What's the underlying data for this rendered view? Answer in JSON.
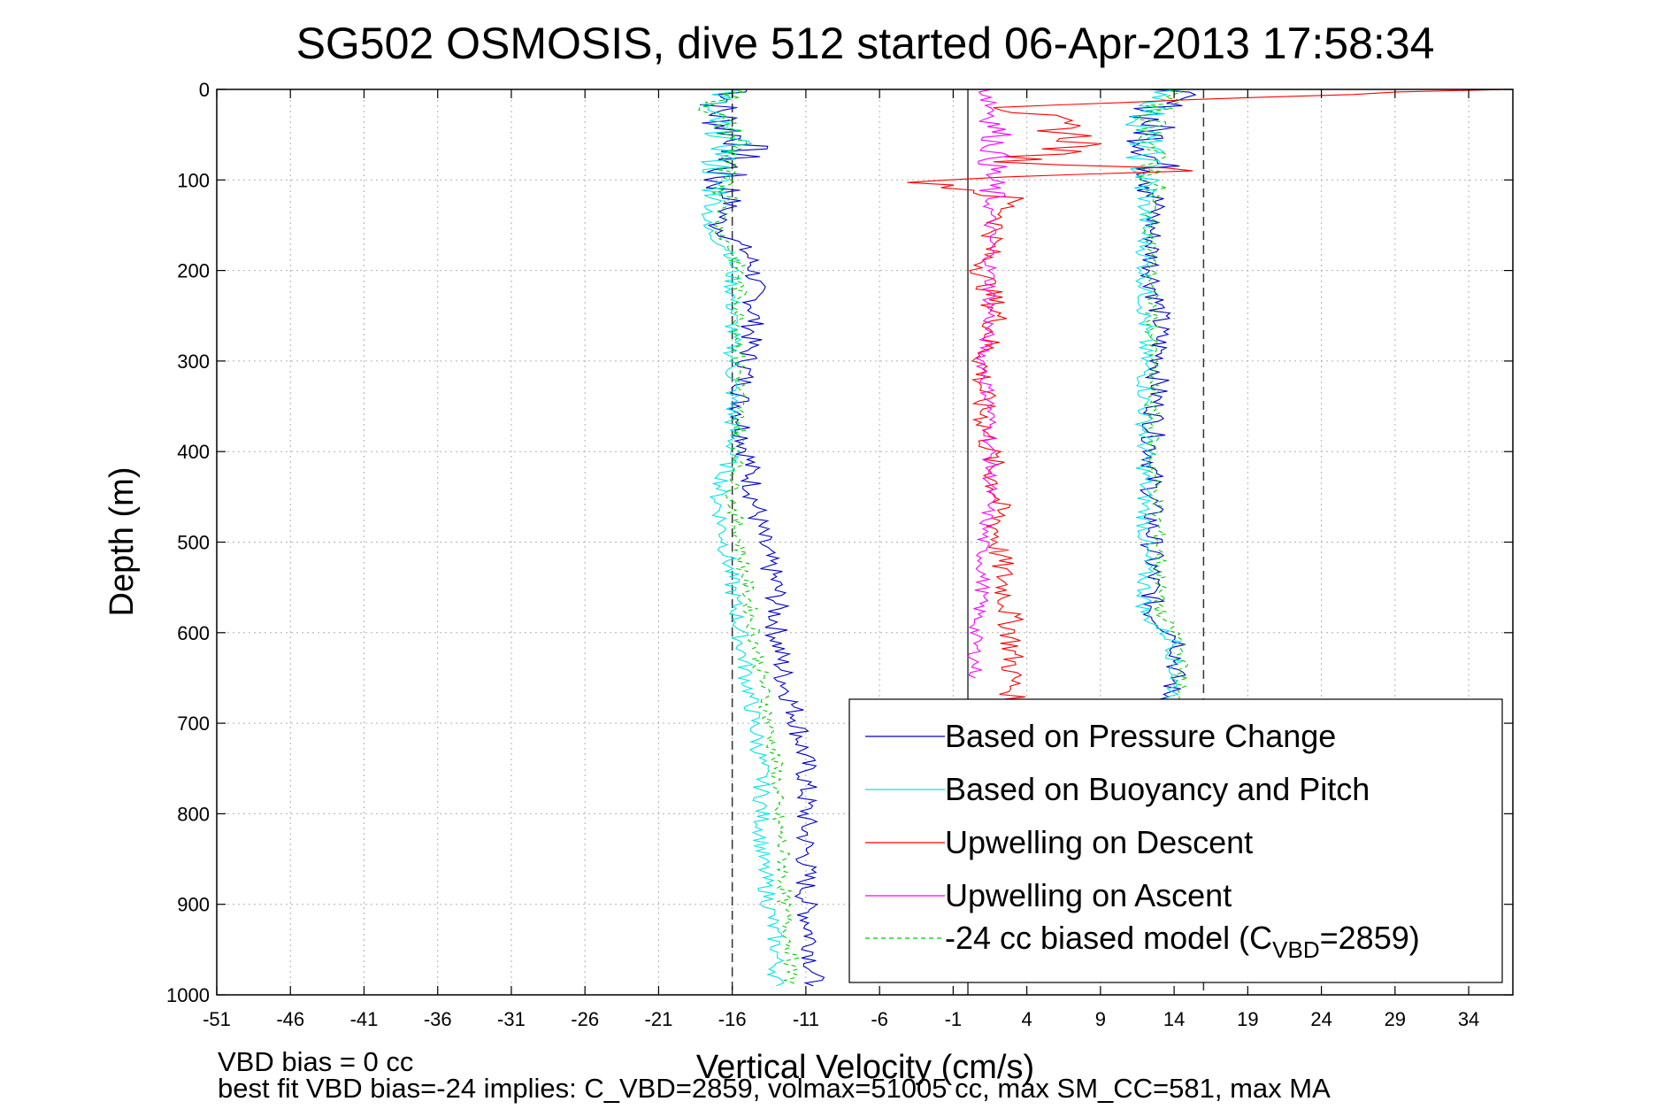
{
  "chart_data": {
    "type": "line",
    "title": "SG502 OSMOSIS, dive 512 started 06-Apr-2013 17:58:34",
    "xlabel": "Vertical Velocity (cm/s)",
    "ylabel": "Depth (m)",
    "xlim": [
      -51,
      37
    ],
    "ylim": [
      0,
      1000
    ],
    "y_reversed": true,
    "grid": true,
    "x_ticks": [
      -51,
      -46,
      -41,
      -36,
      -31,
      -26,
      -21,
      -16,
      -11,
      -6,
      -1,
      4,
      9,
      14,
      19,
      24,
      29,
      34
    ],
    "y_ticks": [
      0,
      100,
      200,
      300,
      400,
      500,
      600,
      700,
      800,
      900,
      1000
    ],
    "legend_position": "bottom-right",
    "reference_lines": [
      {
        "x": -16,
        "style": "dashed"
      },
      {
        "x": 0,
        "style": "solid"
      },
      {
        "x": 16,
        "style": "dashed"
      }
    ],
    "series": [
      {
        "name": "Based on Pressure Change",
        "color": "#0000cc",
        "style": "solid",
        "descent": [
          [
            0,
            -15
          ],
          [
            20,
            -17
          ],
          [
            40,
            -16.5
          ],
          [
            60,
            -15
          ],
          [
            80,
            -16
          ],
          [
            100,
            -17
          ],
          [
            120,
            -16
          ],
          [
            150,
            -17
          ],
          [
            180,
            -15
          ],
          [
            200,
            -14.5
          ],
          [
            250,
            -14.5
          ],
          [
            300,
            -15
          ],
          [
            350,
            -15.5
          ],
          [
            400,
            -15
          ],
          [
            450,
            -14.5
          ],
          [
            500,
            -14
          ],
          [
            550,
            -13
          ],
          [
            600,
            -13
          ],
          [
            650,
            -12.5
          ],
          [
            700,
            -11.5
          ],
          [
            750,
            -11
          ],
          [
            800,
            -11
          ],
          [
            850,
            -11
          ],
          [
            900,
            -11
          ],
          [
            950,
            -10.5
          ],
          [
            990,
            -10.5
          ]
        ],
        "ascent": [
          [
            0,
            14
          ],
          [
            30,
            12.5
          ],
          [
            60,
            12.5
          ],
          [
            100,
            13
          ],
          [
            150,
            12.5
          ],
          [
            200,
            12.5
          ],
          [
            250,
            13
          ],
          [
            300,
            13
          ],
          [
            400,
            12.5
          ],
          [
            500,
            12.5
          ],
          [
            580,
            12.5
          ],
          [
            610,
            14.5
          ],
          [
            650,
            14
          ],
          [
            680,
            13.5
          ]
        ]
      },
      {
        "name": "Based on Buoyancy and Pitch",
        "color": "#00e5e5",
        "style": "solid",
        "descent": [
          [
            0,
            -16
          ],
          [
            20,
            -18
          ],
          [
            40,
            -17
          ],
          [
            60,
            -16
          ],
          [
            80,
            -17
          ],
          [
            100,
            -17
          ],
          [
            120,
            -17
          ],
          [
            150,
            -18
          ],
          [
            180,
            -16
          ],
          [
            200,
            -16
          ],
          [
            250,
            -16
          ],
          [
            300,
            -16
          ],
          [
            350,
            -16
          ],
          [
            400,
            -16
          ],
          [
            450,
            -17
          ],
          [
            500,
            -16.5
          ],
          [
            550,
            -16
          ],
          [
            600,
            -15.5
          ],
          [
            650,
            -15
          ],
          [
            700,
            -14.5
          ],
          [
            750,
            -14
          ],
          [
            800,
            -14
          ],
          [
            850,
            -14
          ],
          [
            900,
            -13.5
          ],
          [
            950,
            -13
          ],
          [
            990,
            -13
          ]
        ],
        "ascent": [
          [
            0,
            14
          ],
          [
            30,
            12
          ],
          [
            60,
            12
          ],
          [
            100,
            12
          ],
          [
            150,
            12
          ],
          [
            200,
            12
          ],
          [
            250,
            12
          ],
          [
            300,
            12
          ],
          [
            400,
            12
          ],
          [
            500,
            12
          ],
          [
            580,
            12
          ],
          [
            610,
            14
          ],
          [
            650,
            14
          ],
          [
            680,
            14
          ]
        ]
      },
      {
        "name": "Upwelling on Descent",
        "color": "#ff0000",
        "style": "solid",
        "descent": [
          [
            0,
            35
          ],
          [
            20,
            3
          ],
          [
            40,
            6
          ],
          [
            60,
            8
          ],
          [
            80,
            3
          ],
          [
            90,
            17
          ],
          [
            100,
            -3
          ],
          [
            120,
            3
          ],
          [
            150,
            2
          ],
          [
            200,
            1
          ],
          [
            250,
            2
          ],
          [
            300,
            1
          ],
          [
            350,
            1
          ],
          [
            400,
            1.5
          ],
          [
            450,
            2
          ],
          [
            500,
            2
          ],
          [
            550,
            2.5
          ],
          [
            600,
            3
          ],
          [
            650,
            3
          ],
          [
            680,
            3
          ]
        ]
      },
      {
        "name": "Upwelling on Ascent",
        "color": "#ff00ff",
        "style": "solid",
        "ascent": [
          [
            0,
            1.5
          ],
          [
            50,
            2
          ],
          [
            100,
            1.5
          ],
          [
            150,
            1.5
          ],
          [
            200,
            1.5
          ],
          [
            250,
            1.5
          ],
          [
            300,
            1
          ],
          [
            350,
            1.5
          ],
          [
            400,
            1.5
          ],
          [
            450,
            1.5
          ],
          [
            500,
            1
          ],
          [
            550,
            1
          ],
          [
            600,
            0.5
          ],
          [
            650,
            0.5
          ]
        ]
      },
      {
        "name": "-24 cc biased model (C",
        "name_sub": "VBD",
        "name_tail": "=2859)",
        "color": "#00cc00",
        "style": "dashed",
        "descent": [
          [
            0,
            -15.5
          ],
          [
            20,
            -17.5
          ],
          [
            40,
            -16.5
          ],
          [
            60,
            -15.5
          ],
          [
            80,
            -16.5
          ],
          [
            100,
            -17
          ],
          [
            120,
            -16
          ],
          [
            150,
            -17
          ],
          [
            180,
            -16
          ],
          [
            200,
            -15.5
          ],
          [
            250,
            -15.5
          ],
          [
            300,
            -15.5
          ],
          [
            350,
            -15.5
          ],
          [
            400,
            -15.5
          ],
          [
            450,
            -16
          ],
          [
            500,
            -15.5
          ],
          [
            550,
            -15
          ],
          [
            600,
            -14.5
          ],
          [
            650,
            -14
          ],
          [
            700,
            -13.5
          ],
          [
            750,
            -13
          ],
          [
            800,
            -13
          ],
          [
            850,
            -12.5
          ],
          [
            900,
            -12.5
          ],
          [
            950,
            -12
          ],
          [
            990,
            -12
          ]
        ],
        "ascent": [
          [
            0,
            14
          ],
          [
            30,
            12.5
          ],
          [
            60,
            12.5
          ],
          [
            100,
            12.5
          ],
          [
            150,
            12.5
          ],
          [
            200,
            12.5
          ],
          [
            250,
            12.5
          ],
          [
            300,
            12.5
          ],
          [
            400,
            12.5
          ],
          [
            500,
            13
          ],
          [
            580,
            13
          ],
          [
            610,
            14.5
          ],
          [
            650,
            14.5
          ],
          [
            680,
            14
          ]
        ]
      }
    ]
  },
  "footer": {
    "line1": "VBD bias = 0 cc",
    "line2": "best fit VBD bias=-24 implies: C_VBD=2859, volmax=51005 cc, max SM_CC=581, max MA"
  }
}
